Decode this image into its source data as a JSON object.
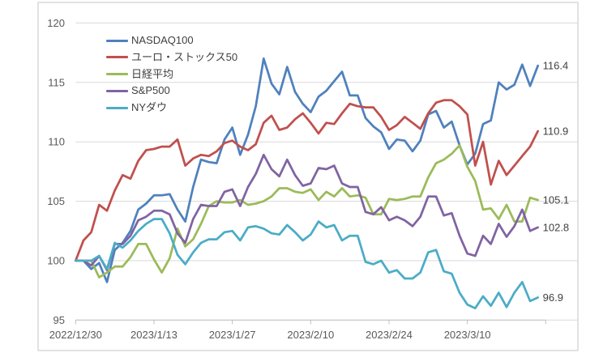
{
  "chart_data": {
    "type": "line",
    "title": "",
    "xlabel": "",
    "ylabel": "",
    "ylim": [
      95,
      120
    ],
    "yticks": [
      95,
      100,
      105,
      110,
      115,
      120
    ],
    "grid": true,
    "legend_position": "top-left",
    "x_axis_tick_labels": [
      "2022/12/30",
      "2023/1/13",
      "2023/1/27",
      "2023/2/10",
      "2023/2/24",
      "2023/3/10"
    ],
    "x": [
      "2022/12/30",
      "2023/1/2",
      "2023/1/3",
      "2023/1/4",
      "2023/1/5",
      "2023/1/6",
      "2023/1/9",
      "2023/1/10",
      "2023/1/11",
      "2023/1/12",
      "2023/1/13",
      "2023/1/16",
      "2023/1/17",
      "2023/1/18",
      "2023/1/19",
      "2023/1/20",
      "2023/1/23",
      "2023/1/24",
      "2023/1/25",
      "2023/1/26",
      "2023/1/27",
      "2023/1/30",
      "2023/1/31",
      "2023/2/1",
      "2023/2/2",
      "2023/2/3",
      "2023/2/6",
      "2023/2/7",
      "2023/2/8",
      "2023/2/9",
      "2023/2/10",
      "2023/2/13",
      "2023/2/14",
      "2023/2/15",
      "2023/2/16",
      "2023/2/17",
      "2023/2/20",
      "2023/2/21",
      "2023/2/22",
      "2023/2/23",
      "2023/2/24",
      "2023/2/27",
      "2023/2/28",
      "2023/3/1",
      "2023/3/2",
      "2023/3/3",
      "2023/3/6",
      "2023/3/7",
      "2023/3/8",
      "2023/3/9",
      "2023/3/10",
      "2023/3/13",
      "2023/3/14",
      "2023/3/15",
      "2023/3/16",
      "2023/3/17",
      "2023/3/20",
      "2023/3/21",
      "2023/3/22",
      "2023/3/23"
    ],
    "series": [
      {
        "name": "NASDAQ100",
        "color": "#4F81BD",
        "end_label": "116.4",
        "values": [
          100,
          100,
          99.3,
          99.8,
          98.2,
          100.9,
          101.5,
          102.5,
          104.3,
          104.8,
          105.5,
          105.5,
          105.6,
          104.3,
          103.3,
          106.2,
          108.5,
          108.3,
          108.2,
          110.2,
          111.2,
          108.9,
          110.6,
          113.0,
          117.0,
          114.9,
          114.0,
          116.3,
          114.2,
          113.2,
          112.5,
          113.8,
          114.3,
          115.1,
          115.9,
          113.9,
          113.9,
          112.0,
          111.3,
          110.8,
          109.4,
          110.2,
          110.1,
          109.2,
          110.1,
          112.3,
          112.6,
          111.2,
          111.7,
          109.7,
          108.1,
          109.0,
          111.5,
          111.8,
          115.0,
          114.4,
          114.8,
          116.5,
          114.7,
          116.4
        ]
      },
      {
        "name": "ユーロ・ストックス50",
        "color": "#C0504D",
        "end_label": "110.9",
        "values": [
          100,
          101.7,
          102.4,
          104.7,
          104.2,
          105.9,
          107.2,
          106.9,
          108.4,
          109.3,
          109.4,
          109.6,
          109.6,
          110.2,
          108.0,
          108.6,
          108.9,
          108.8,
          109.2,
          109.9,
          110.1,
          109.6,
          109.3,
          109.8,
          111.6,
          112.2,
          111.0,
          111.2,
          111.9,
          112.4,
          111.6,
          110.7,
          111.6,
          111.5,
          112.4,
          113.2,
          113.0,
          112.9,
          112.9,
          112.1,
          111.0,
          111.4,
          112.1,
          111.6,
          111.1,
          112.4,
          113.3,
          113.5,
          113.5,
          113.0,
          112.3,
          108.0,
          110.0,
          106.4,
          108.4,
          107.2,
          108.0,
          108.8,
          109.6,
          110.9
        ]
      },
      {
        "name": "日経平均",
        "color": "#9BBB59",
        "end_label": "105.1",
        "values": [
          100,
          100,
          100,
          98.6,
          99.0,
          99.5,
          99.5,
          100.3,
          101.4,
          101.4,
          100.1,
          99.0,
          100.2,
          102.7,
          101.2,
          101.8,
          103.1,
          104.6,
          105.0,
          104.9,
          104.9,
          105.1,
          104.7,
          104.8,
          105.0,
          105.4,
          106.1,
          106.1,
          105.8,
          105.7,
          106.0,
          105.1,
          105.8,
          105.4,
          106.1,
          105.4,
          105.5,
          105.3,
          103.9,
          103.9,
          105.2,
          105.1,
          105.2,
          105.4,
          105.4,
          107.0,
          108.2,
          108.5,
          109.0,
          109.7,
          107.9,
          106.7,
          104.3,
          104.4,
          103.5,
          104.7,
          103.3,
          103.3,
          105.3,
          105.1
        ]
      },
      {
        "name": "S&P500",
        "color": "#8064A2",
        "end_label": "102.8",
        "values": [
          100,
          100,
          99.6,
          100.4,
          99.2,
          101.4,
          101.4,
          102.1,
          103.4,
          103.7,
          104.2,
          104.2,
          103.9,
          102.3,
          101.5,
          103.5,
          104.7,
          104.6,
          104.6,
          105.8,
          106.0,
          104.6,
          106.2,
          107.3,
          108.9,
          107.7,
          107.1,
          108.5,
          107.2,
          106.3,
          106.5,
          107.8,
          107.7,
          108.0,
          106.5,
          106.2,
          106.2,
          104.1,
          103.9,
          104.5,
          103.4,
          103.7,
          103.4,
          102.9,
          103.7,
          105.4,
          105.4,
          103.8,
          104.0,
          102.1,
          100.6,
          100.4,
          102.1,
          101.4,
          103.1,
          102.0,
          102.9,
          104.3,
          102.5,
          102.8
        ]
      },
      {
        "name": "NYダウ",
        "color": "#4BACC6",
        "end_label": "96.9",
        "values": [
          100,
          100,
          100.0,
          100.4,
          99.3,
          101.5,
          101.1,
          101.7,
          102.5,
          103.1,
          103.5,
          103.5,
          102.3,
          100.5,
          99.7,
          100.7,
          101.5,
          101.8,
          101.8,
          102.4,
          102.5,
          101.7,
          102.8,
          102.9,
          102.7,
          102.3,
          102.2,
          103.0,
          102.4,
          101.7,
          102.2,
          103.3,
          102.8,
          103.0,
          101.7,
          102.1,
          102.1,
          99.9,
          99.7,
          100.0,
          99.0,
          99.2,
          98.5,
          98.5,
          99.0,
          100.7,
          100.9,
          99.1,
          98.9,
          97.3,
          96.3,
          96.0,
          97.0,
          96.2,
          97.3,
          96.1,
          97.3,
          98.2,
          96.6,
          96.9
        ]
      }
    ]
  },
  "colors": {
    "background": "#FFFFFF",
    "frame_border": "#D9D9D9",
    "gridline": "#D9D9D9",
    "axis_line": "#BFBFBF",
    "tick_label": "#595959",
    "end_label": "#404040",
    "legend_label": "#404040"
  }
}
